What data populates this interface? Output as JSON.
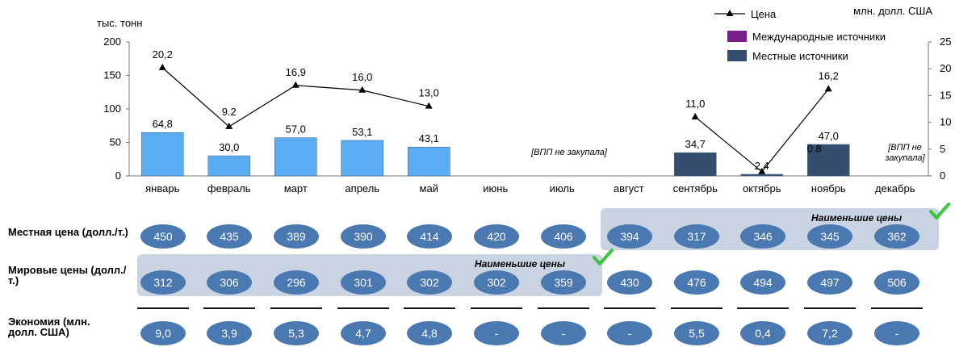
{
  "chart_data": {
    "type": "bar",
    "left_axis_title": "тыс. тонн",
    "right_axis_title": "млн. долл. США",
    "categories": [
      "январь",
      "февраль",
      "март",
      "апрель",
      "май",
      "июнь",
      "июль",
      "август",
      "сентябрь",
      "октябрь",
      "ноябрь",
      "декабрь"
    ],
    "y_left_range": [
      0,
      200
    ],
    "y_left_ticks": [
      "0",
      "50",
      "100",
      "150",
      "200"
    ],
    "y_right_range": [
      0,
      25
    ],
    "y_right_ticks": [
      "0",
      "5",
      "10",
      "15",
      "20",
      "25"
    ],
    "series": [
      {
        "name": "Международные источники",
        "type": "bar",
        "color": "#7a1f8a",
        "values": [
          null,
          null,
          null,
          null,
          null,
          null,
          null,
          null,
          null,
          null,
          null,
          null
        ]
      },
      {
        "name": "Местные источники",
        "type": "bar",
        "values": [
          64.8,
          30.0,
          57.0,
          53.1,
          43.1,
          null,
          null,
          null,
          34.7,
          2.4,
          47.0,
          null
        ],
        "labels": [
          "64,8",
          "30,0",
          "57,0",
          "53,1",
          "43,1",
          "",
          "",
          "",
          "34,7",
          "2,4",
          "47,0",
          ""
        ],
        "colors": [
          "#5aadf2",
          "#5aadf2",
          "#5aadf2",
          "#5aadf2",
          "#5aadf2",
          "",
          "",
          "",
          "#354e6f",
          "#354e6f",
          "#354e6f",
          ""
        ]
      },
      {
        "name": "Цена",
        "type": "line",
        "axis": "right",
        "values": [
          20.2,
          9.2,
          16.9,
          16.0,
          13.0,
          null,
          null,
          null,
          11.0,
          0.8,
          16.2,
          null
        ],
        "labels": [
          "20,2",
          "9.2",
          "16,9",
          "16,0",
          "13,0",
          "",
          "",
          "",
          "11,0",
          "0.8",
          "16,2",
          ""
        ]
      }
    ],
    "annotations": {
      "june_july": "[ВПП не закупала]",
      "december": "[ВПП не закупала]"
    },
    "legend": {
      "items": [
        "Цена",
        "Международные источники",
        "Местные источники"
      ],
      "placement": "top-right"
    }
  },
  "rows": {
    "local": {
      "label": "Местная цена (долл./т.)",
      "values": [
        "450",
        "435",
        "389",
        "390",
        "414",
        "420",
        "406",
        "394",
        "317",
        "346",
        "345",
        "362"
      ],
      "highlight": "Наименьшие цены"
    },
    "world": {
      "label": "Мировые цены (долл./т.)",
      "values": [
        "312",
        "306",
        "296",
        "301",
        "302",
        "302",
        "359",
        "430",
        "476",
        "494",
        "497",
        "506"
      ],
      "highlight": "Наименьшие цены"
    },
    "savings": {
      "label": "Экономия (млн. долл. США)",
      "values": [
        "9,0",
        "3,9",
        "5,3",
        "4,7",
        "4,8",
        "-",
        "-",
        "-",
        "5,5",
        "0,4",
        "7,2",
        "-"
      ]
    }
  },
  "colors": {
    "pill": "#4a78b0",
    "highlight": "#c9d3e1",
    "check": "#3cc83c"
  }
}
